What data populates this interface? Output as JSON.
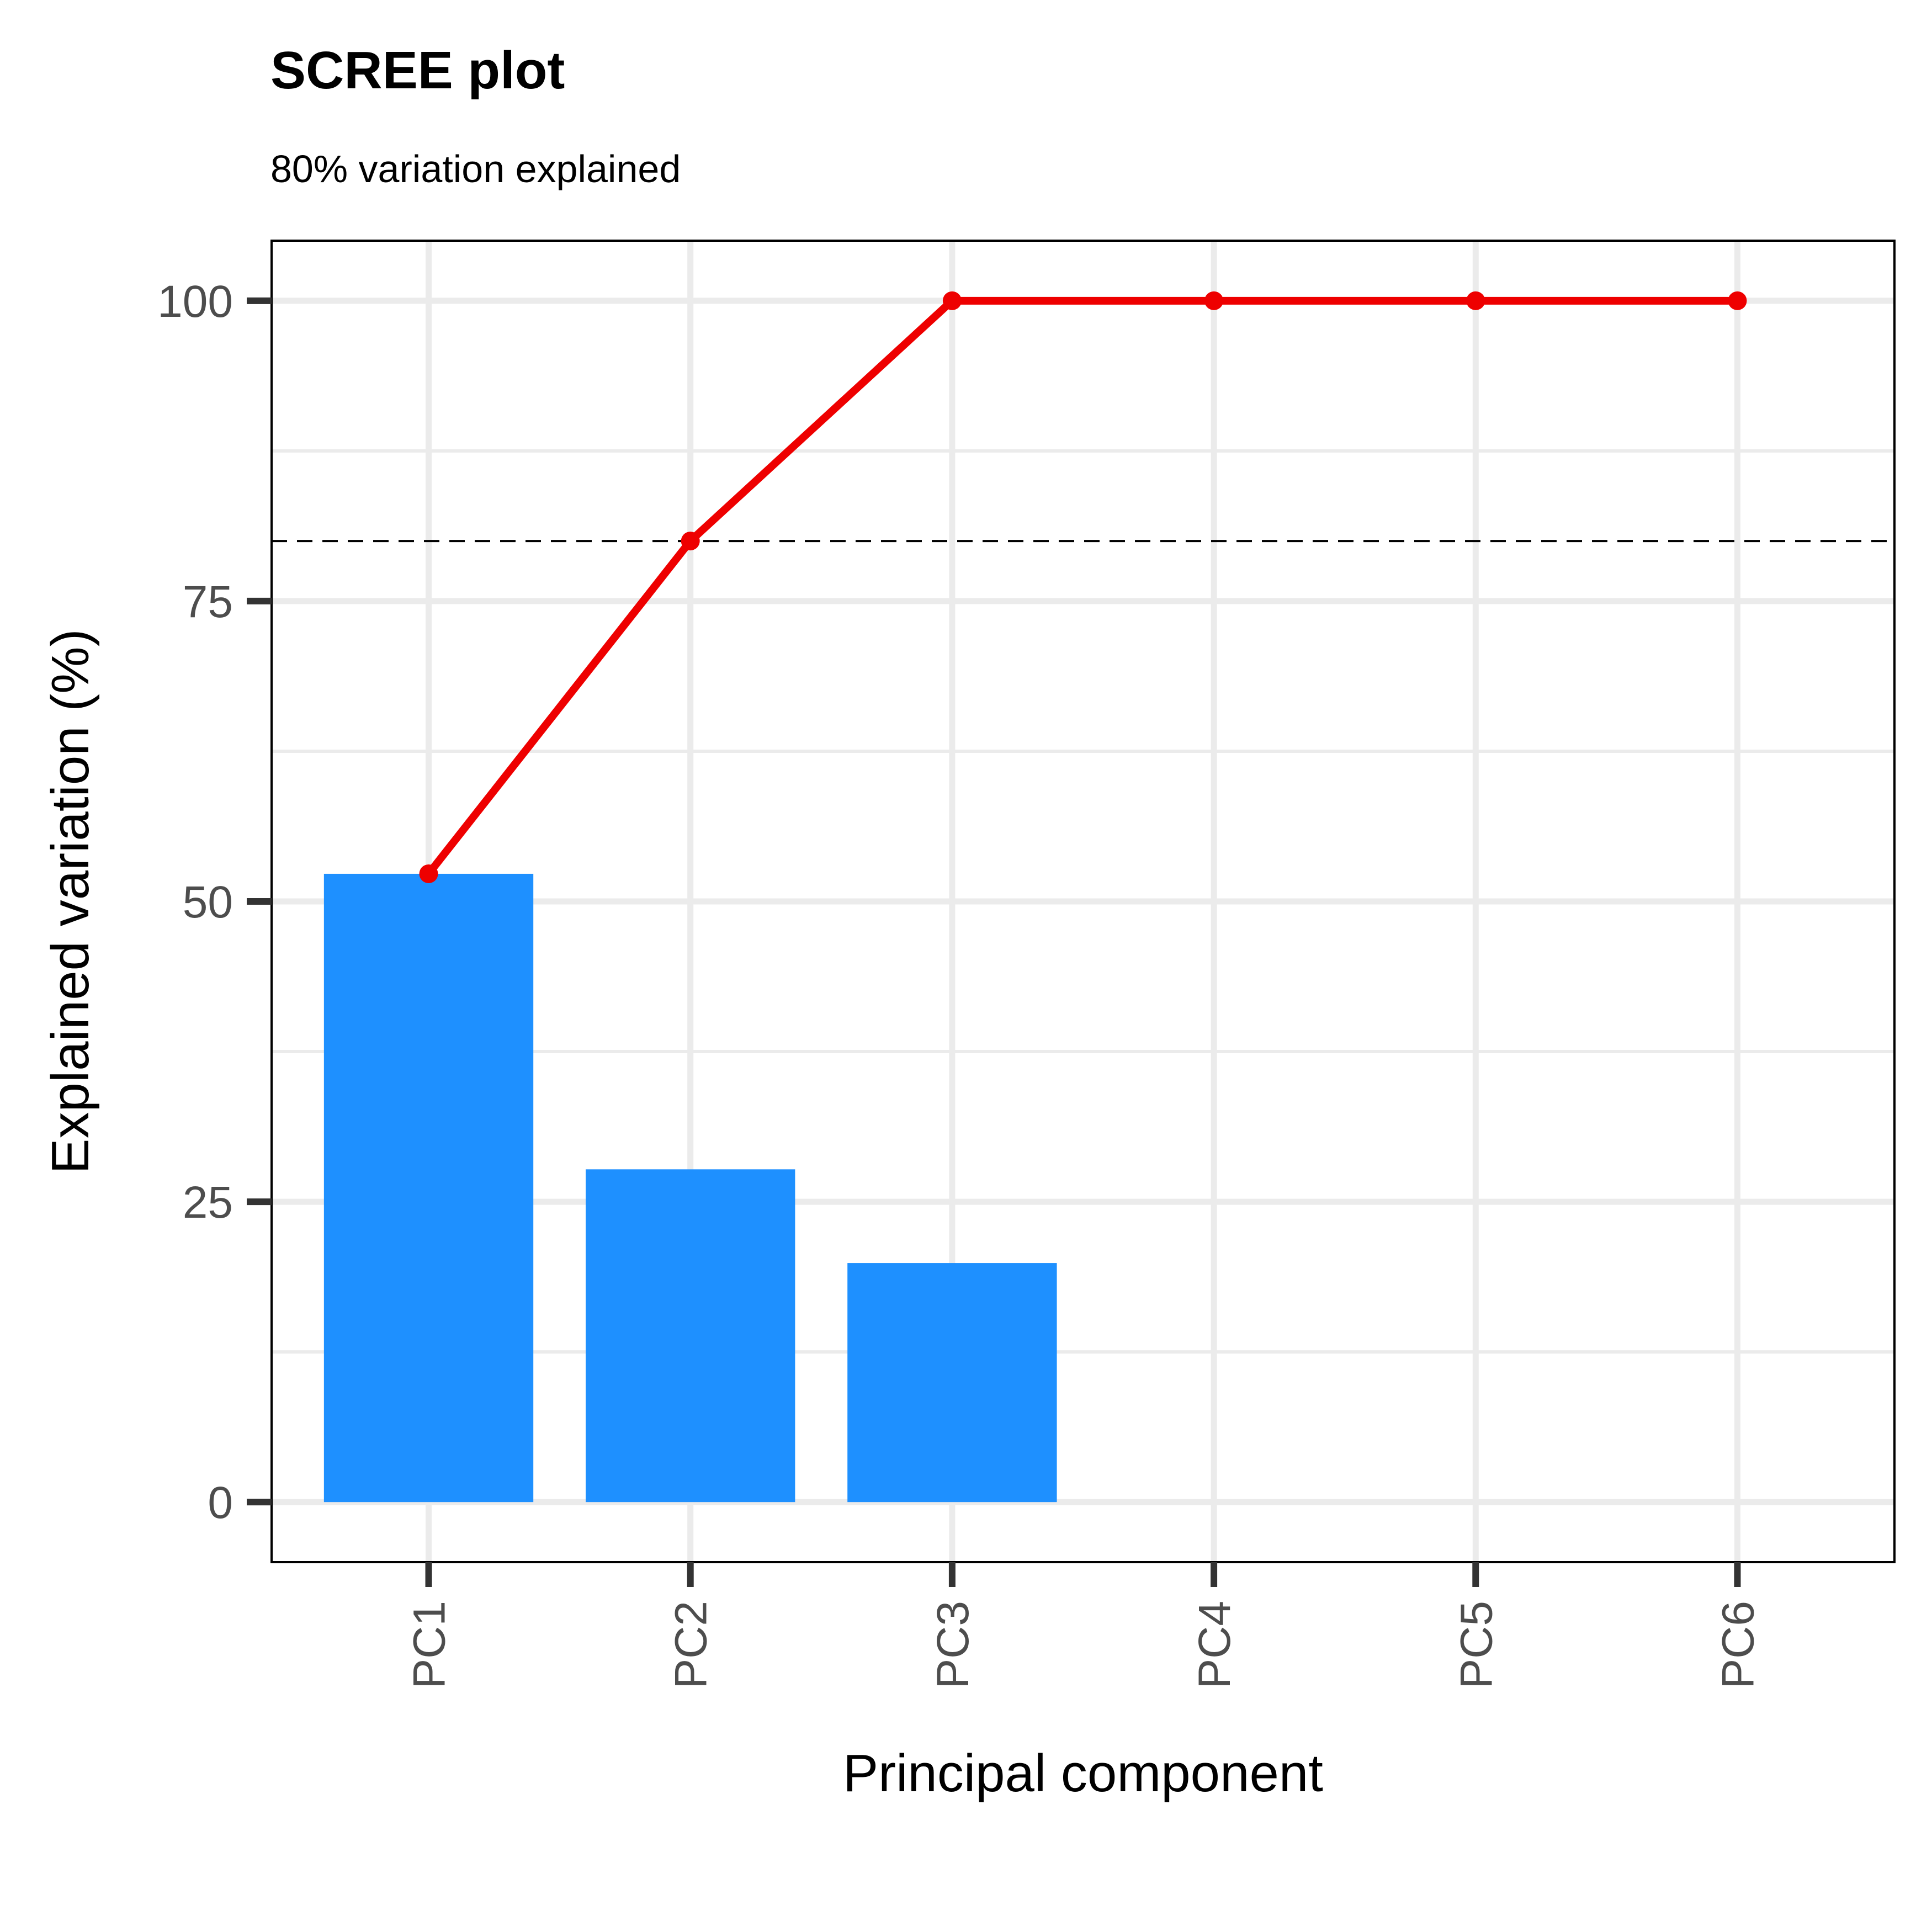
{
  "chart_data": {
    "type": "bar",
    "title": "SCREE plot",
    "subtitle": "80% variation explained",
    "xlabel": "Principal component",
    "ylabel": "Explained variation (%)",
    "categories": [
      "PC1",
      "PC2",
      "PC3",
      "PC4",
      "PC5",
      "PC6"
    ],
    "series": [
      {
        "type": "bar",
        "values": [
          52.3,
          27.7,
          19.9,
          0,
          0,
          0
        ],
        "color": "#1e90ff"
      },
      {
        "type": "line",
        "values": [
          52.3,
          80.0,
          100,
          100,
          100,
          100
        ],
        "color": "#ee0000"
      }
    ],
    "reference_line": {
      "y": 80,
      "style": "dashed",
      "color": "#000000"
    },
    "ylim": [
      -5,
      105
    ],
    "yticks": [
      0,
      25,
      50,
      75,
      100
    ],
    "grid": true,
    "x_tick_rotation": "vertical"
  }
}
